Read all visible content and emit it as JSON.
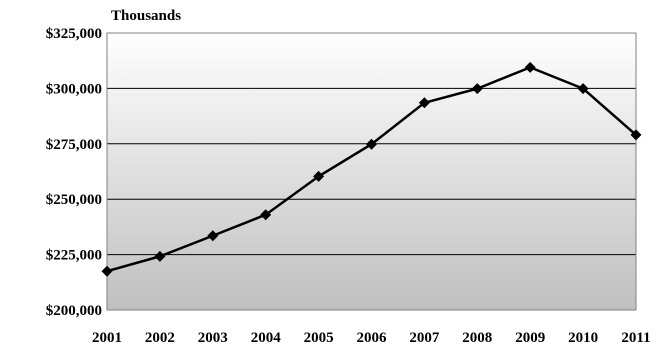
{
  "chart_data": {
    "type": "line",
    "title": "",
    "unit_label": "Thousands",
    "xlabel": "",
    "ylabel": "",
    "x": [
      "2001",
      "2002",
      "2003",
      "2004",
      "2005",
      "2006",
      "2007",
      "2008",
      "2009",
      "2010",
      "2011"
    ],
    "series": [
      {
        "values": [
          217500,
          224200,
          233500,
          243000,
          260300,
          274800,
          293500,
          299900,
          309500,
          299900,
          279000
        ]
      }
    ],
    "ylim": [
      200000,
      325000
    ],
    "ytick_values": [
      200000,
      225000,
      250000,
      275000,
      300000,
      325000
    ],
    "ytick_labels": [
      "$200,000",
      "$225,000",
      "$250,000",
      "$275,000",
      "$300,000",
      "$325,000"
    ],
    "grid": true,
    "legend": "none",
    "colors": {
      "line": "#000000",
      "marker": "#000000",
      "grid": "#000000",
      "plot_bg_top": "#ffffff",
      "plot_bg_bottom": "#c0c0c0"
    },
    "marker": "diamond"
  }
}
